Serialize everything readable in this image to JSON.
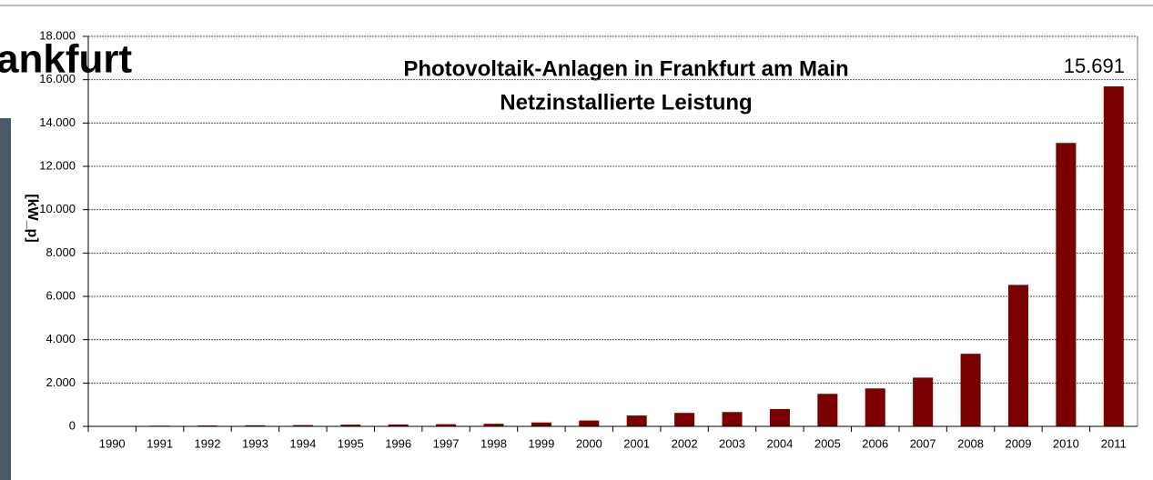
{
  "slide_title": "ankfurt",
  "chart_data": {
    "type": "bar",
    "title": "Photovoltaik-Anlagen in Frankfurt am Main",
    "subtitle": "Netzinstallierte Leistung",
    "y_label": "[kW_p]",
    "categories": [
      "1990",
      "1991",
      "1992",
      "1993",
      "1994",
      "1995",
      "1996",
      "1997",
      "1998",
      "1999",
      "2000",
      "2001",
      "2002",
      "2003",
      "2004",
      "2005",
      "2006",
      "2007",
      "2008",
      "2009",
      "2010",
      "2011"
    ],
    "values": [
      20,
      30,
      40,
      50,
      60,
      80,
      90,
      100,
      120,
      180,
      270,
      500,
      620,
      660,
      800,
      1500,
      1750,
      2250,
      3350,
      6530,
      13080,
      15691
    ],
    "value_labels": [
      null,
      null,
      null,
      null,
      null,
      null,
      null,
      null,
      null,
      null,
      null,
      null,
      null,
      null,
      null,
      null,
      null,
      null,
      null,
      null,
      null,
      "15.691"
    ],
    "color": "#7b0000",
    "ylim": [
      0,
      18000
    ],
    "yticks": [
      0,
      {
        "value": 2000,
        "label": "2.000"
      },
      {
        "value": 4000,
        "label": "4.000"
      },
      {
        "value": 6000,
        "label": "6.000"
      },
      {
        "value": 8000,
        "label": "8.000"
      },
      {
        "value": 10000,
        "label": "10.000"
      },
      {
        "value": 12000,
        "label": "12.000"
      },
      {
        "value": 14000,
        "label": "14.000"
      },
      {
        "value": 16000,
        "label": "16.000"
      },
      {
        "value": 18000,
        "label": "18.000"
      }
    ],
    "grid": true
  }
}
